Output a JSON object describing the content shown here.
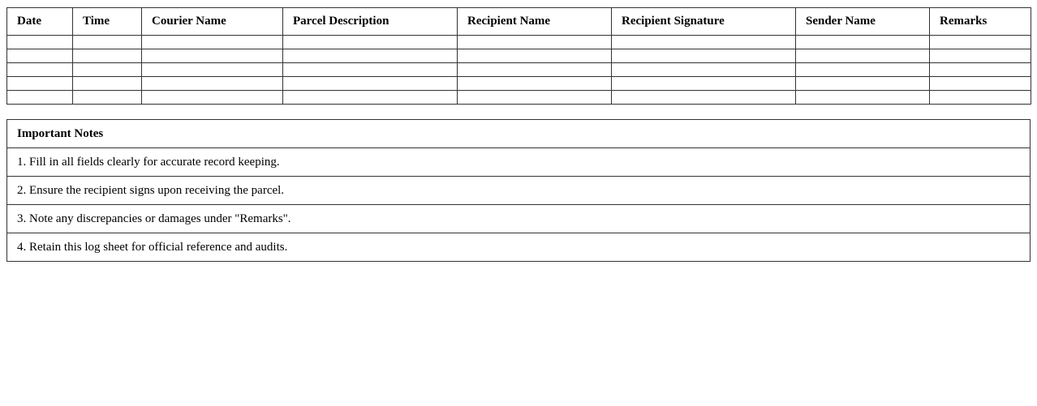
{
  "log_table": {
    "headers": [
      "Date",
      "Time",
      "Courier Name",
      "Parcel Description",
      "Recipient Name",
      "Recipient Signature",
      "Sender Name",
      "Remarks"
    ],
    "empty_rows": 5
  },
  "notes": {
    "title": "Important Notes",
    "items": [
      "1. Fill in all fields clearly for accurate record keeping.",
      "2. Ensure the recipient signs upon receiving the parcel.",
      "3. Note any discrepancies or damages under \"Remarks\".",
      "4. Retain this log sheet for official reference and audits."
    ]
  }
}
